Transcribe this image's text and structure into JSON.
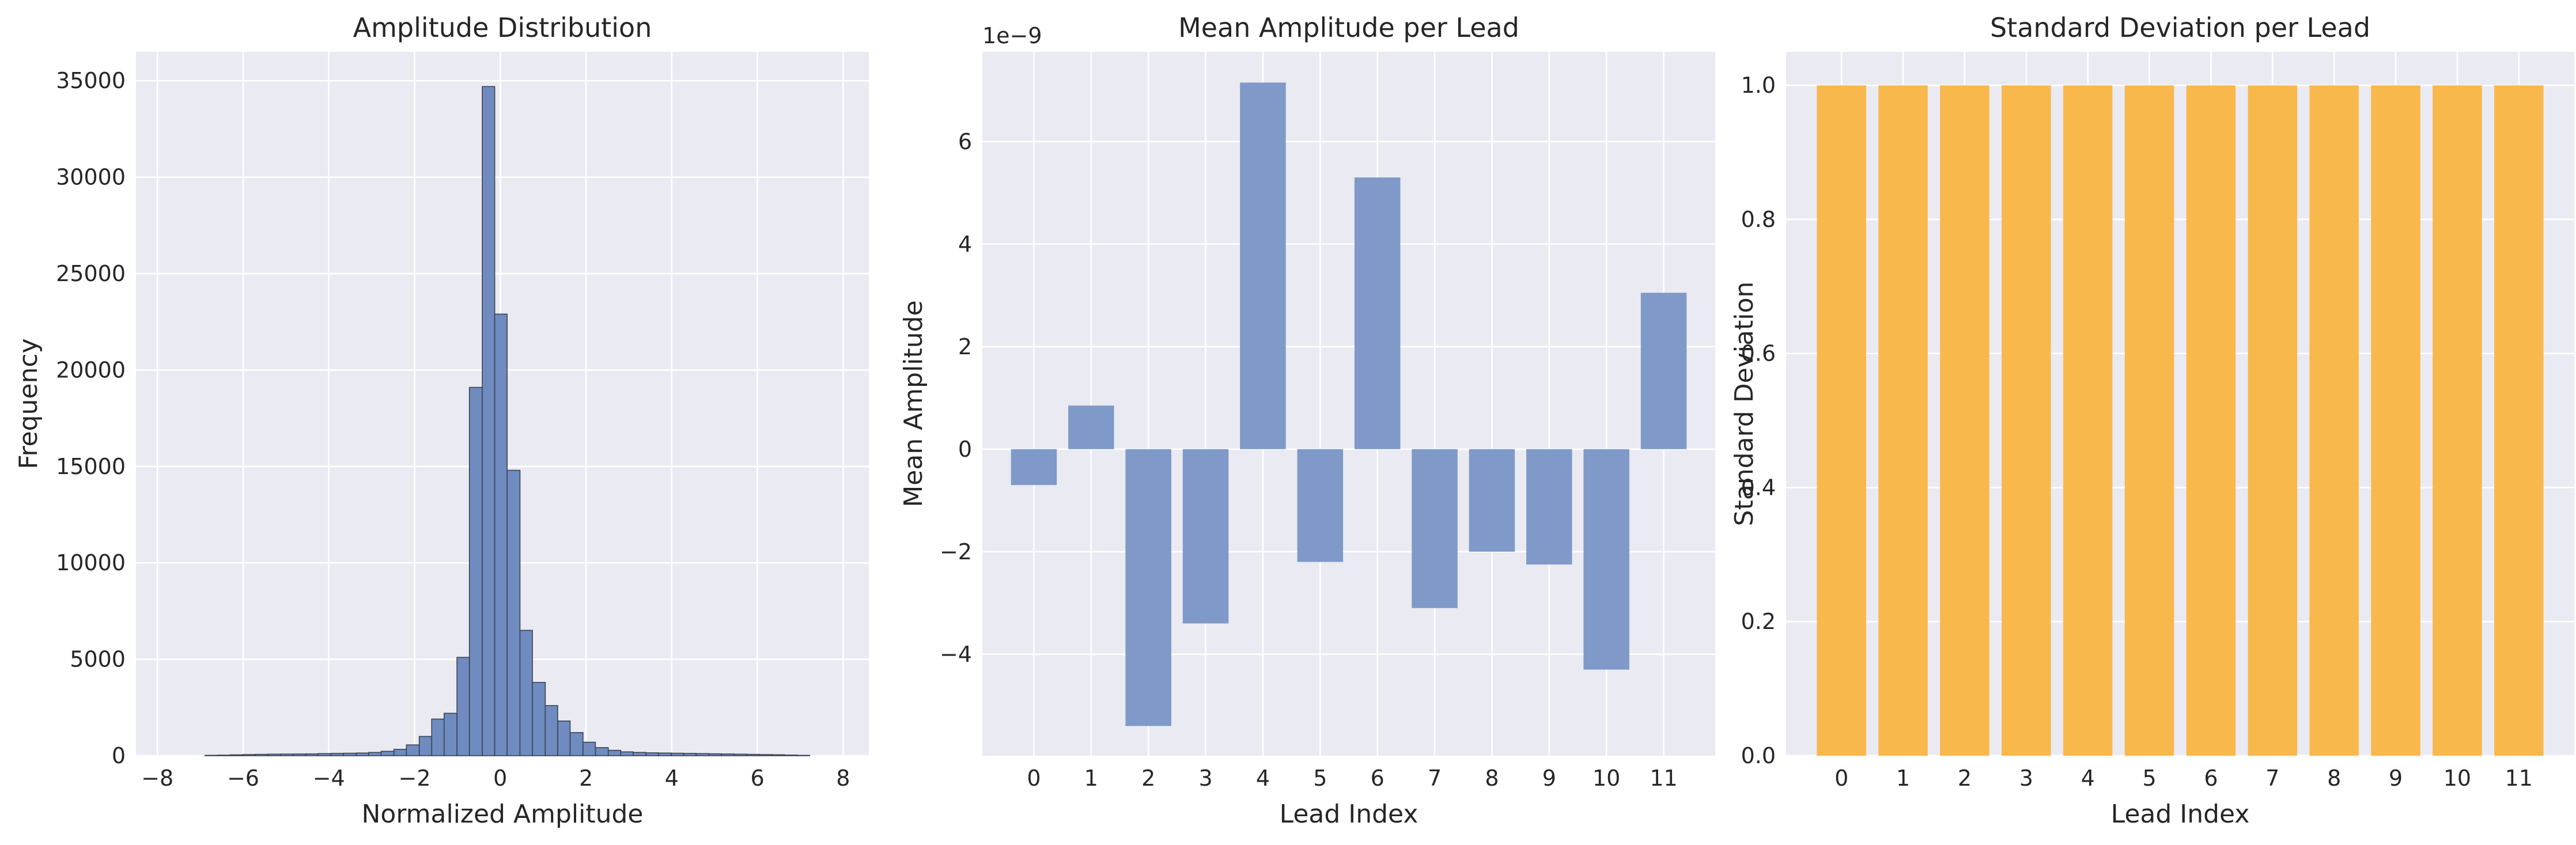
{
  "colors": {
    "background": "#ffffff",
    "plot_background": "#eaeaf2",
    "grid": "#ffffff",
    "histogram_fill": "#6f8bbf",
    "histogram_edge": "#3b4252",
    "mean_bar": "#7f9ac8",
    "std_bar": "#f8b84b",
    "text": "#262626"
  },
  "chart_data": [
    {
      "type": "bar",
      "chart_kind": "histogram",
      "title": "Amplitude Distribution",
      "xlabel": "Normalized Amplitude",
      "ylabel": "Frequency",
      "xlim": [
        -8.5,
        8.6
      ],
      "ylim": [
        0,
        36500
      ],
      "xticks": [
        -8,
        -6,
        -4,
        -2,
        0,
        2,
        4,
        6,
        8
      ],
      "yticks": [
        0,
        5000,
        10000,
        15000,
        20000,
        25000,
        30000,
        35000
      ],
      "grid": true,
      "bins": [
        {
          "x0": -6.89,
          "x1": -6.6,
          "value": 20
        },
        {
          "x0": -6.6,
          "x1": -6.3,
          "value": 30
        },
        {
          "x0": -6.3,
          "x1": -6.01,
          "value": 45
        },
        {
          "x0": -6.01,
          "x1": -5.72,
          "value": 60
        },
        {
          "x0": -5.72,
          "x1": -5.42,
          "value": 70
        },
        {
          "x0": -5.42,
          "x1": -5.13,
          "value": 80
        },
        {
          "x0": -5.13,
          "x1": -4.83,
          "value": 85
        },
        {
          "x0": -4.83,
          "x1": -4.54,
          "value": 90
        },
        {
          "x0": -4.54,
          "x1": -4.25,
          "value": 95
        },
        {
          "x0": -4.25,
          "x1": -3.95,
          "value": 110
        },
        {
          "x0": -3.95,
          "x1": -3.66,
          "value": 120
        },
        {
          "x0": -3.66,
          "x1": -3.36,
          "value": 130
        },
        {
          "x0": -3.36,
          "x1": -3.07,
          "value": 140
        },
        {
          "x0": -3.07,
          "x1": -2.78,
          "value": 170
        },
        {
          "x0": -2.78,
          "x1": -2.48,
          "value": 230
        },
        {
          "x0": -2.48,
          "x1": -2.19,
          "value": 330
        },
        {
          "x0": -2.19,
          "x1": -1.89,
          "value": 560
        },
        {
          "x0": -1.89,
          "x1": -1.6,
          "value": 1000
        },
        {
          "x0": -1.6,
          "x1": -1.31,
          "value": 1900
        },
        {
          "x0": -1.31,
          "x1": -1.01,
          "value": 2200
        },
        {
          "x0": -1.01,
          "x1": -0.72,
          "value": 5100
        },
        {
          "x0": -0.72,
          "x1": -0.42,
          "value": 19100
        },
        {
          "x0": -0.42,
          "x1": -0.13,
          "value": 34700
        },
        {
          "x0": -0.13,
          "x1": 0.16,
          "value": 22900
        },
        {
          "x0": 0.16,
          "x1": 0.46,
          "value": 14800
        },
        {
          "x0": 0.46,
          "x1": 0.75,
          "value": 6500
        },
        {
          "x0": 0.75,
          "x1": 1.05,
          "value": 3800
        },
        {
          "x0": 1.05,
          "x1": 1.34,
          "value": 2600
        },
        {
          "x0": 1.34,
          "x1": 1.63,
          "value": 1800
        },
        {
          "x0": 1.63,
          "x1": 1.93,
          "value": 1200
        },
        {
          "x0": 1.93,
          "x1": 2.22,
          "value": 700
        },
        {
          "x0": 2.22,
          "x1": 2.52,
          "value": 420
        },
        {
          "x0": 2.52,
          "x1": 2.81,
          "value": 280
        },
        {
          "x0": 2.81,
          "x1": 3.1,
          "value": 200
        },
        {
          "x0": 3.1,
          "x1": 3.4,
          "value": 170
        },
        {
          "x0": 3.4,
          "x1": 3.69,
          "value": 150
        },
        {
          "x0": 3.69,
          "x1": 3.99,
          "value": 140
        },
        {
          "x0": 3.99,
          "x1": 4.28,
          "value": 130
        },
        {
          "x0": 4.28,
          "x1": 4.57,
          "value": 120
        },
        {
          "x0": 4.57,
          "x1": 4.87,
          "value": 110
        },
        {
          "x0": 4.87,
          "x1": 5.16,
          "value": 100
        },
        {
          "x0": 5.16,
          "x1": 5.46,
          "value": 90
        },
        {
          "x0": 5.46,
          "x1": 5.75,
          "value": 80
        },
        {
          "x0": 5.75,
          "x1": 6.04,
          "value": 70
        },
        {
          "x0": 6.04,
          "x1": 6.34,
          "value": 60
        },
        {
          "x0": 6.34,
          "x1": 6.63,
          "value": 50
        },
        {
          "x0": 6.63,
          "x1": 6.93,
          "value": 35
        },
        {
          "x0": 6.93,
          "x1": 7.22,
          "value": 20
        }
      ]
    },
    {
      "type": "bar",
      "title": "Mean Amplitude per Lead",
      "xlabel": "Lead Index",
      "ylabel": "Mean Amplitude",
      "offset_text": "1e−9",
      "categories": [
        "0",
        "1",
        "2",
        "3",
        "4",
        "5",
        "6",
        "7",
        "8",
        "9",
        "10",
        "11"
      ],
      "values": [
        -0.7,
        0.85,
        -5.4,
        -3.4,
        7.15,
        -2.2,
        5.3,
        -3.1,
        -2.0,
        -2.25,
        -4.3,
        3.05
      ],
      "ylim": [
        -5.98,
        7.75
      ],
      "yticks": [
        -4,
        -2,
        0,
        2,
        4,
        6
      ],
      "ytick_labels": [
        "−4",
        "−2",
        "0",
        "2",
        "4",
        "6"
      ],
      "grid": true
    },
    {
      "type": "bar",
      "title": "Standard Deviation per Lead",
      "xlabel": "Lead Index",
      "ylabel": "Standard Deviation",
      "categories": [
        "0",
        "1",
        "2",
        "3",
        "4",
        "5",
        "6",
        "7",
        "8",
        "9",
        "10",
        "11"
      ],
      "values": [
        1.0,
        1.0,
        1.0,
        1.0,
        1.0,
        1.0,
        1.0,
        1.0,
        1.0,
        1.0,
        1.0,
        1.0
      ],
      "ylim": [
        0,
        1.05
      ],
      "yticks": [
        0.0,
        0.2,
        0.4,
        0.6,
        0.8,
        1.0
      ],
      "ytick_labels": [
        "0.0",
        "0.2",
        "0.4",
        "0.6",
        "0.8",
        "1.0"
      ],
      "grid": true
    }
  ]
}
